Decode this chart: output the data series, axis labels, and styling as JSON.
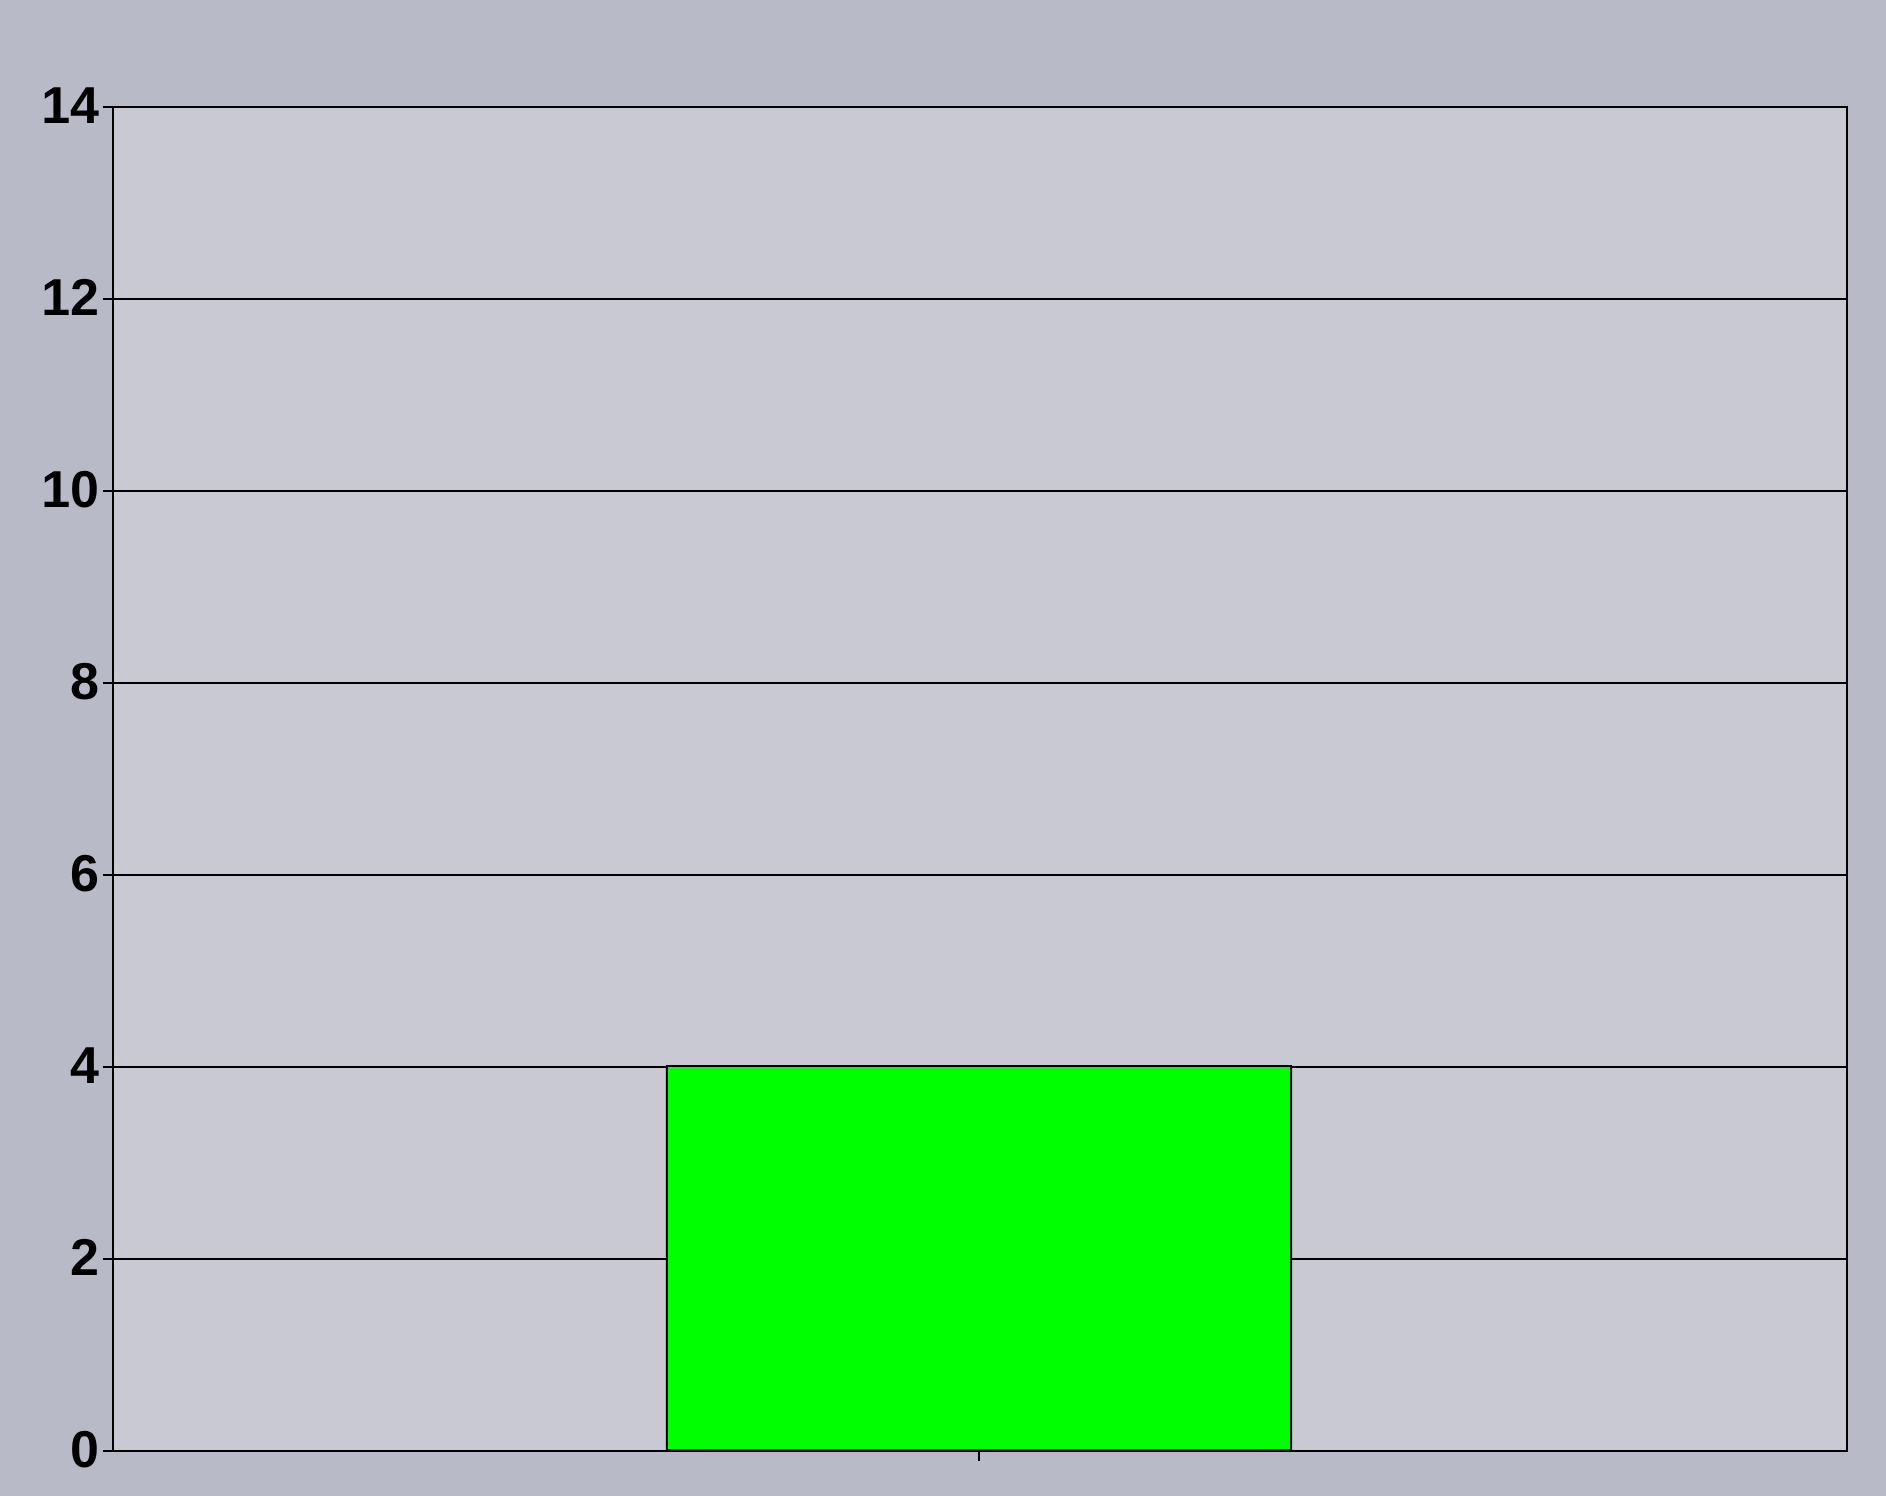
{
  "chart_data": {
    "type": "bar",
    "categories": [
      null
    ],
    "values": [
      4
    ],
    "color": "#00ff00",
    "ylim": [
      0,
      14
    ],
    "yticks": [
      0,
      2,
      4,
      6,
      8,
      10,
      12,
      14
    ],
    "grid": "y",
    "tick_labels": "y"
  }
}
